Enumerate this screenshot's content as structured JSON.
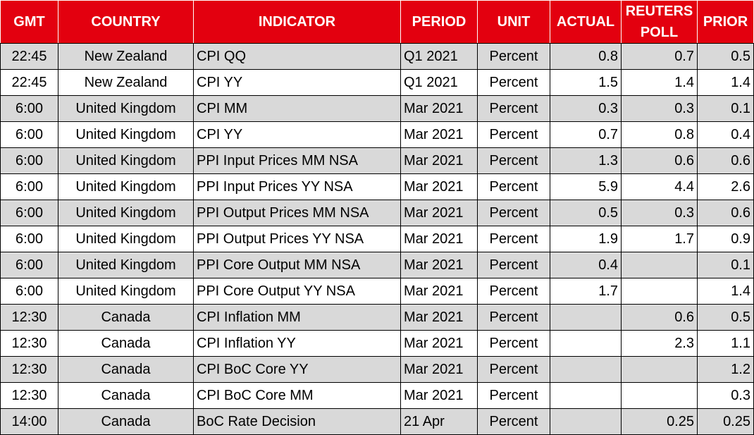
{
  "table": {
    "header": [
      "GMT",
      "COUNTRY",
      "INDICATOR",
      "PERIOD",
      "UNIT",
      "ACTUAL",
      "REUTERS POLL",
      "PRIOR"
    ],
    "rows": [
      [
        "22:45",
        "New Zealand",
        "CPI QQ",
        "Q1 2021",
        "Percent",
        "0.8",
        "0.7",
        "0.5"
      ],
      [
        "22:45",
        "New Zealand",
        "CPI YY",
        "Q1 2021",
        "Percent",
        "1.5",
        "1.4",
        "1.4"
      ],
      [
        "6:00",
        "United Kingdom",
        "CPI MM",
        "Mar 2021",
        "Percent",
        "0.3",
        "0.3",
        "0.1"
      ],
      [
        "6:00",
        "United Kingdom",
        "CPI YY",
        "Mar 2021",
        "Percent",
        "0.7",
        "0.8",
        "0.4"
      ],
      [
        "6:00",
        "United Kingdom",
        "PPI Input Prices MM NSA",
        "Mar 2021",
        "Percent",
        "1.3",
        "0.6",
        "0.6"
      ],
      [
        "6:00",
        "United Kingdom",
        "PPI Input Prices YY NSA",
        "Mar 2021",
        "Percent",
        "5.9",
        "4.4",
        "2.6"
      ],
      [
        "6:00",
        "United Kingdom",
        "PPI Output Prices MM NSA",
        "Mar 2021",
        "Percent",
        "0.5",
        "0.3",
        "0.6"
      ],
      [
        "6:00",
        "United Kingdom",
        "PPI Output Prices YY NSA",
        "Mar 2021",
        "Percent",
        "1.9",
        "1.7",
        "0.9"
      ],
      [
        "6:00",
        "United Kingdom",
        "PPI Core Output MM NSA",
        "Mar 2021",
        "Percent",
        "0.4",
        null,
        "0.1"
      ],
      [
        "6:00",
        "United Kingdom",
        "PPI Core Output YY NSA",
        "Mar 2021",
        "Percent",
        "1.7",
        null,
        "1.4"
      ],
      [
        "12:30",
        "Canada",
        "CPI Inflation MM",
        "Mar 2021",
        "Percent",
        null,
        "0.6",
        "0.5"
      ],
      [
        "12:30",
        "Canada",
        "CPI Inflation YY",
        "Mar 2021",
        "Percent",
        null,
        "2.3",
        "1.1"
      ],
      [
        "12:30",
        "Canada",
        "CPI BoC Core YY",
        "Mar 2021",
        "Percent",
        null,
        null,
        "1.2"
      ],
      [
        "12:30",
        "Canada",
        "CPI BoC Core MM",
        "Mar 2021",
        "Percent",
        null,
        null,
        "0.3"
      ],
      [
        "14:00",
        "Canada",
        "BoC Rate Decision",
        "21 Apr",
        "Percent",
        null,
        "0.25",
        "0.25"
      ]
    ]
  }
}
